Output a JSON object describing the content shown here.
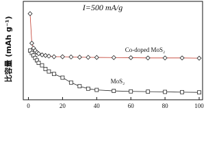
{
  "chart_data": {
    "type": "line",
    "title": "I=500 mA/g",
    "y_label": "比容量 (mAh g⁻¹)",
    "x": [
      1,
      2,
      3,
      4,
      5,
      6,
      8,
      10,
      12,
      15,
      20,
      25,
      30,
      35,
      40,
      50,
      60,
      70,
      80,
      90,
      100
    ],
    "series": [
      {
        "name": "Co-doped MoS₂",
        "color": "#222222",
        "marker": "diamond",
        "values": [
          700,
          460,
          420,
          400,
          385,
          375,
          365,
          360,
          355,
          350,
          350,
          348,
          346,
          345,
          344,
          343,
          342,
          340,
          340,
          340,
          338
        ]
      },
      {
        "name": "MoS₂",
        "color": "#222222",
        "marker": "square",
        "values": [
          400,
          380,
          360,
          340,
          320,
          300,
          280,
          250,
          230,
          210,
          180,
          140,
          110,
          90,
          80,
          72,
          68,
          66,
          64,
          62,
          60
        ]
      }
    ],
    "xlim": [
      -3,
      102
    ],
    "ylim": [
      0,
      800
    ],
    "xticks": [
      0,
      20,
      40,
      60,
      80,
      100
    ]
  }
}
